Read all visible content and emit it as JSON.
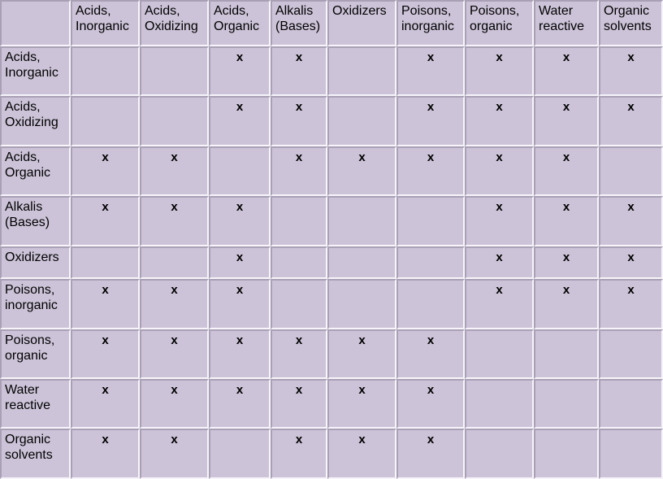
{
  "colors": {
    "cell_background": "#ccc3d8",
    "grid_dark": "#a9a0b6",
    "grid_light": "#f7f5fa",
    "text": "#000000"
  },
  "chart_data": {
    "type": "table",
    "description_visible_text_only": "",
    "corner_label": "",
    "mark_symbol": "x",
    "columns": [
      "Acids, Inorganic",
      "Acids, Oxidizing",
      "Acids, Organic",
      "Alkalis (Bases)",
      "Oxidizers",
      "Poisons, inorganic",
      "Poisons, organic",
      "Water reactive",
      "Organic solvents"
    ],
    "rows": [
      {
        "label": "Acids, Inorganic",
        "marks": [
          0,
          0,
          1,
          1,
          0,
          1,
          1,
          1,
          1
        ]
      },
      {
        "label": "Acids, Oxidizing",
        "marks": [
          0,
          0,
          1,
          1,
          0,
          1,
          1,
          1,
          1
        ]
      },
      {
        "label": "Acids, Organic",
        "marks": [
          1,
          1,
          0,
          1,
          1,
          1,
          1,
          1,
          0
        ]
      },
      {
        "label": "Alkalis (Bases)",
        "marks": [
          1,
          1,
          1,
          0,
          0,
          0,
          1,
          1,
          1
        ]
      },
      {
        "label": "Oxidizers",
        "marks": [
          0,
          0,
          1,
          0,
          0,
          0,
          1,
          1,
          1
        ]
      },
      {
        "label": "Poisons, inorganic",
        "marks": [
          1,
          1,
          1,
          0,
          0,
          0,
          1,
          1,
          1
        ]
      },
      {
        "label": "Poisons, organic",
        "marks": [
          1,
          1,
          1,
          1,
          1,
          1,
          0,
          0,
          0
        ]
      },
      {
        "label": "Water reactive",
        "marks": [
          1,
          1,
          1,
          1,
          1,
          1,
          0,
          0,
          0
        ]
      },
      {
        "label": "Organic solvents",
        "marks": [
          1,
          1,
          0,
          1,
          1,
          1,
          0,
          0,
          0
        ]
      }
    ]
  }
}
